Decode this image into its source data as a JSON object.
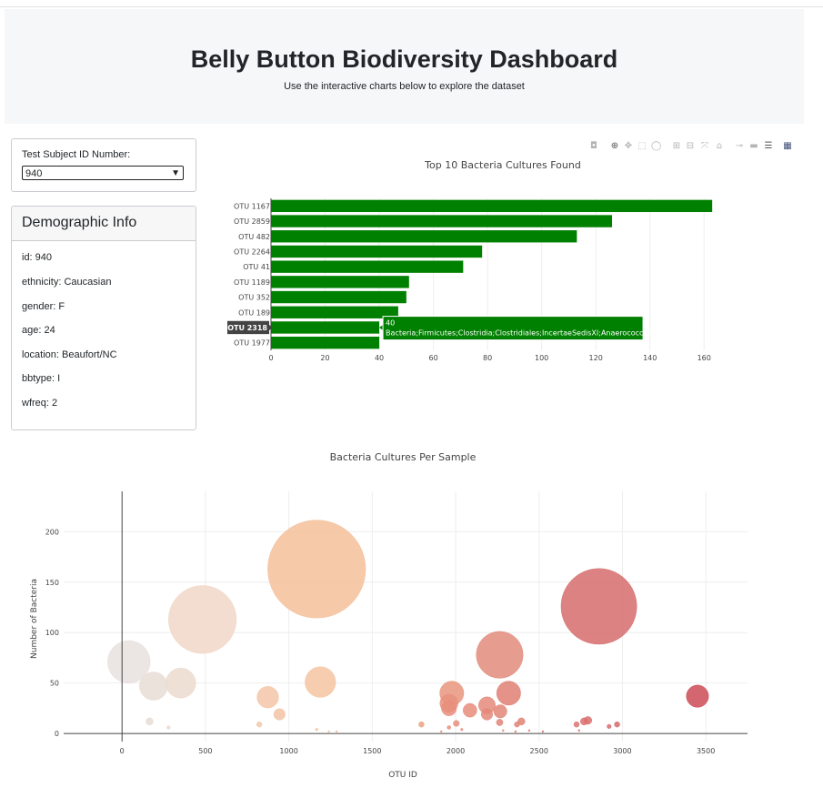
{
  "header": {
    "title": "Belly Button Biodiversity Dashboard",
    "subtitle": "Use the interactive charts below to explore the dataset"
  },
  "selector": {
    "label": "Test Subject ID Number:",
    "value": "940"
  },
  "demographics": {
    "title": "Demographic Info",
    "rows": [
      "id: 940",
      "ethnicity: Caucasian",
      "gender: F",
      "age: 24",
      "location: Beaufort/NC",
      "bbtype: I",
      "wfreq: 2"
    ]
  },
  "modebar_icons": [
    "camera-icon",
    "zoom-icon",
    "pan-icon",
    "box-select-icon",
    "lasso-icon",
    "zoom-in-icon",
    "zoom-out-icon",
    "autoscale-icon",
    "home-icon",
    "spike-lines-icon",
    "hover-closest-icon",
    "hover-compare-icon",
    "plotly-logo-icon"
  ],
  "chart_data": [
    {
      "type": "bar",
      "orientation": "horizontal",
      "title": "Top 10 Bacteria Cultures Found",
      "categories": [
        "OTU 1167",
        "OTU 2859",
        "OTU 482",
        "OTU 2264",
        "OTU 41",
        "OTU 1189",
        "OTU 352",
        "OTU 189",
        "OTU 2318",
        "OTU 1977"
      ],
      "values": [
        163,
        126,
        113,
        78,
        71,
        51,
        50,
        47,
        40,
        40
      ],
      "xlim": [
        0,
        170
      ],
      "xticks": [
        0,
        20,
        40,
        60,
        80,
        100,
        120,
        140,
        160
      ],
      "color": "#008000",
      "grid": true,
      "tooltip": {
        "category": "OTU 2318",
        "value_text": "40",
        "label": "Bacteria;Firmicutes;Clostridia;Clostridiales;IncertaeSedisXI;Anaerococcus"
      }
    },
    {
      "type": "scatter",
      "title": "Bacteria Cultures Per Sample",
      "xlabel": "OTU ID",
      "ylabel": "Number of Bacteria",
      "xlim": [
        -350,
        3750
      ],
      "ylim": [
        -8,
        240
      ],
      "xticks": [
        0,
        500,
        1000,
        1500,
        2000,
        2500,
        3000,
        3500
      ],
      "yticks": [
        0,
        50,
        100,
        150,
        200
      ],
      "colorscale": "Earth",
      "grid": true,
      "points": [
        {
          "x": 1167,
          "y": 163,
          "color": "#f5c09a"
        },
        {
          "x": 2859,
          "y": 126,
          "color": "#d66c6c"
        },
        {
          "x": 482,
          "y": 113,
          "color": "#f1d7c8"
        },
        {
          "x": 2264,
          "y": 78,
          "color": "#e28c7c"
        },
        {
          "x": 41,
          "y": 71,
          "color": "#e8e2df"
        },
        {
          "x": 1189,
          "y": 51,
          "color": "#f4c4a0"
        },
        {
          "x": 352,
          "y": 50,
          "color": "#ecdacf"
        },
        {
          "x": 189,
          "y": 47,
          "color": "#e9ddd6"
        },
        {
          "x": 2318,
          "y": 40,
          "color": "#e17f74"
        },
        {
          "x": 1977,
          "y": 40,
          "color": "#e8957e"
        },
        {
          "x": 3450,
          "y": 37,
          "color": "#cc4b57"
        },
        {
          "x": 874,
          "y": 36,
          "color": "#f3c6a8"
        },
        {
          "x": 1960,
          "y": 30,
          "color": "#e7907c"
        },
        {
          "x": 2188,
          "y": 28,
          "color": "#e48a7a"
        },
        {
          "x": 1960,
          "y": 25,
          "color": "#e98e7d"
        },
        {
          "x": 2086,
          "y": 23,
          "color": "#e78c7b"
        },
        {
          "x": 2268,
          "y": 22,
          "color": "#e28679"
        },
        {
          "x": 944,
          "y": 19,
          "color": "#f3c3a4"
        },
        {
          "x": 2188,
          "y": 19,
          "color": "#e48879"
        },
        {
          "x": 2793,
          "y": 13,
          "color": "#d86e6f"
        },
        {
          "x": 2770,
          "y": 12,
          "color": "#da7170"
        },
        {
          "x": 165,
          "y": 12,
          "color": "#e6dcd5"
        },
        {
          "x": 2394,
          "y": 12,
          "color": "#e18275"
        },
        {
          "x": 2264,
          "y": 11,
          "color": "#e28477"
        },
        {
          "x": 2725,
          "y": 9,
          "color": "#db7471"
        },
        {
          "x": 2968,
          "y": 9,
          "color": "#d66a6c"
        },
        {
          "x": 2004,
          "y": 10,
          "color": "#e78e7d"
        },
        {
          "x": 1795,
          "y": 9,
          "color": "#eba282"
        },
        {
          "x": 2368,
          "y": 9,
          "color": "#e28377"
        },
        {
          "x": 823,
          "y": 9,
          "color": "#f3c9ad"
        },
        {
          "x": 2920,
          "y": 7,
          "color": "#d86c6d"
        },
        {
          "x": 279,
          "y": 6,
          "color": "#ebdcd2"
        },
        {
          "x": 1960,
          "y": 6,
          "color": "#e88f7d"
        },
        {
          "x": 1167,
          "y": 4,
          "color": "#f5c09a"
        },
        {
          "x": 2037,
          "y": 4,
          "color": "#e78c7b"
        },
        {
          "x": 2285,
          "y": 3,
          "color": "#e28479"
        },
        {
          "x": 2441,
          "y": 3,
          "color": "#e08076"
        },
        {
          "x": 2740,
          "y": 3,
          "color": "#da7270"
        },
        {
          "x": 1286,
          "y": 2,
          "color": "#f3bd9a"
        },
        {
          "x": 1240,
          "y": 2,
          "color": "#f4bf9b"
        },
        {
          "x": 2523,
          "y": 2,
          "color": "#df7c75"
        },
        {
          "x": 2359,
          "y": 2,
          "color": "#e18277"
        },
        {
          "x": 1914,
          "y": 2,
          "color": "#e9977f"
        }
      ]
    }
  ]
}
